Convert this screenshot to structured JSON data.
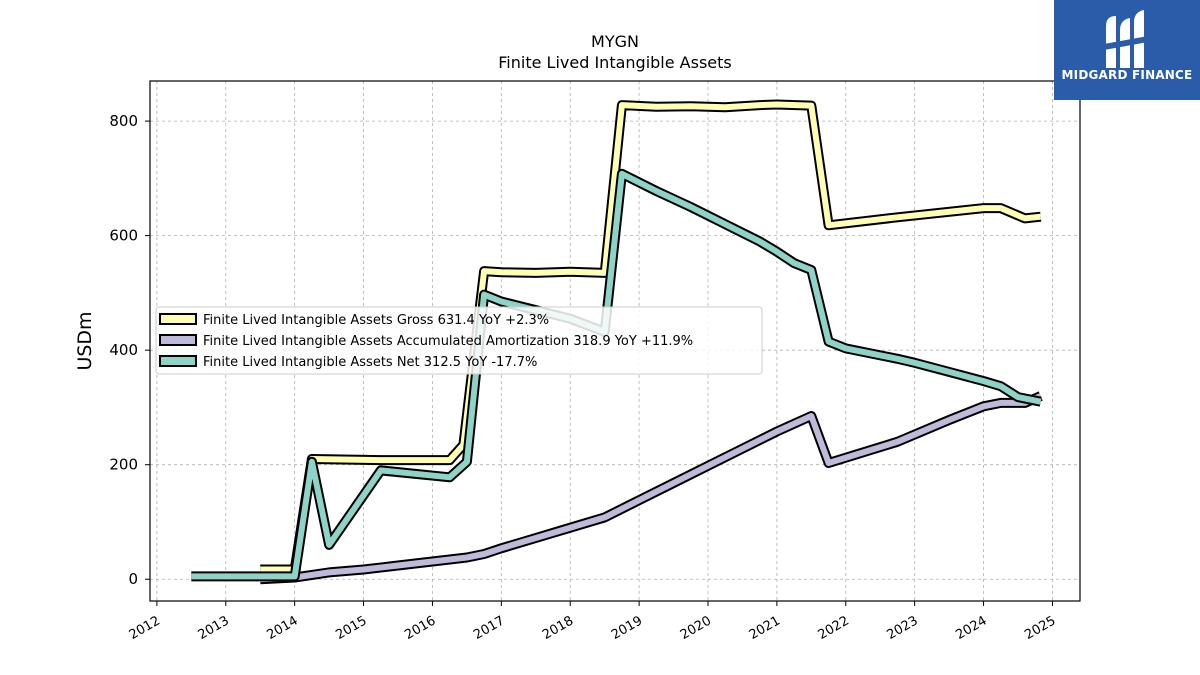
{
  "chart_data": {
    "type": "line",
    "title": "MYGN",
    "subtitle": "Finite Lived Intangible Assets",
    "xlabel": "",
    "ylabel": "USDm",
    "xlim": [
      2011.9,
      2025.4
    ],
    "ylim": [
      -38,
      870
    ],
    "x_ticks": [
      "2012",
      "2013",
      "2014",
      "2015",
      "2016",
      "2017",
      "2018",
      "2019",
      "2020",
      "2021",
      "2022",
      "2023",
      "2024",
      "2025"
    ],
    "y_ticks": [
      0,
      200,
      400,
      600,
      800
    ],
    "grid": true,
    "legend_position": "center-left",
    "series": [
      {
        "name": "Finite Lived Intangible Assets Gross",
        "legend_label": "Finite Lived Intangible Assets Gross  631.4 YoY +2.3%",
        "color": "#ffffb3",
        "points": [
          [
            2013.5,
            17
          ],
          [
            2014.0,
            17
          ],
          [
            2014.25,
            210
          ],
          [
            2015.25,
            208
          ],
          [
            2016.25,
            208
          ],
          [
            2016.45,
            235
          ],
          [
            2016.75,
            538
          ],
          [
            2017.0,
            536
          ],
          [
            2017.5,
            535
          ],
          [
            2018.0,
            537
          ],
          [
            2018.5,
            535
          ],
          [
            2018.75,
            828
          ],
          [
            2019.25,
            825
          ],
          [
            2019.75,
            826
          ],
          [
            2020.25,
            824
          ],
          [
            2020.75,
            828
          ],
          [
            2021.0,
            829
          ],
          [
            2021.5,
            827
          ],
          [
            2021.75,
            618
          ],
          [
            2022.75,
            632
          ],
          [
            2024.0,
            648
          ],
          [
            2024.25,
            648
          ],
          [
            2024.6,
            630
          ],
          [
            2024.83,
            633
          ]
        ]
      },
      {
        "name": "Finite Lived Intangible Assets Accumulated Amortization",
        "legend_label": "Finite Lived Intangible Assets Accumulated Amortization  318.9 YoY +11.9%",
        "color": "#bebada",
        "points": [
          [
            2013.5,
            0
          ],
          [
            2014.0,
            3
          ],
          [
            2014.5,
            12
          ],
          [
            2015.0,
            17
          ],
          [
            2015.5,
            24
          ],
          [
            2016.0,
            31
          ],
          [
            2016.5,
            38
          ],
          [
            2016.75,
            44
          ],
          [
            2017.0,
            54
          ],
          [
            2017.5,
            72
          ],
          [
            2018.0,
            90
          ],
          [
            2018.5,
            108
          ],
          [
            2019.0,
            138
          ],
          [
            2019.5,
            168
          ],
          [
            2020.0,
            198
          ],
          [
            2020.5,
            228
          ],
          [
            2021.0,
            258
          ],
          [
            2021.5,
            285
          ],
          [
            2021.75,
            203
          ],
          [
            2022.75,
            240
          ],
          [
            2023.5,
            278
          ],
          [
            2024.0,
            302
          ],
          [
            2024.25,
            308
          ],
          [
            2024.6,
            308
          ],
          [
            2024.83,
            320
          ]
        ]
      },
      {
        "name": "Finite Lived Intangible Assets Net",
        "legend_label": "Finite Lived Intangible Assets Net  312.5 YoY -17.7%",
        "color": "#8dd3c7",
        "points": [
          [
            2012.5,
            5
          ],
          [
            2013.75,
            5
          ],
          [
            2014.0,
            5
          ],
          [
            2014.25,
            205
          ],
          [
            2014.5,
            60
          ],
          [
            2015.25,
            190
          ],
          [
            2016.25,
            178
          ],
          [
            2016.5,
            205
          ],
          [
            2016.75,
            497
          ],
          [
            2017.0,
            485
          ],
          [
            2017.5,
            470
          ],
          [
            2018.0,
            455
          ],
          [
            2018.5,
            432
          ],
          [
            2018.75,
            708
          ],
          [
            2019.25,
            678
          ],
          [
            2019.75,
            650
          ],
          [
            2020.25,
            620
          ],
          [
            2020.75,
            590
          ],
          [
            2021.0,
            572
          ],
          [
            2021.25,
            552
          ],
          [
            2021.5,
            540
          ],
          [
            2021.75,
            415
          ],
          [
            2022.0,
            403
          ],
          [
            2022.75,
            385
          ],
          [
            2023.0,
            378
          ],
          [
            2023.5,
            362
          ],
          [
            2024.0,
            346
          ],
          [
            2024.25,
            337
          ],
          [
            2024.5,
            318
          ],
          [
            2024.83,
            310
          ]
        ]
      }
    ]
  },
  "logo": {
    "name": "MIDGARD FINANCE",
    "brand_color": "#2a5caa"
  }
}
